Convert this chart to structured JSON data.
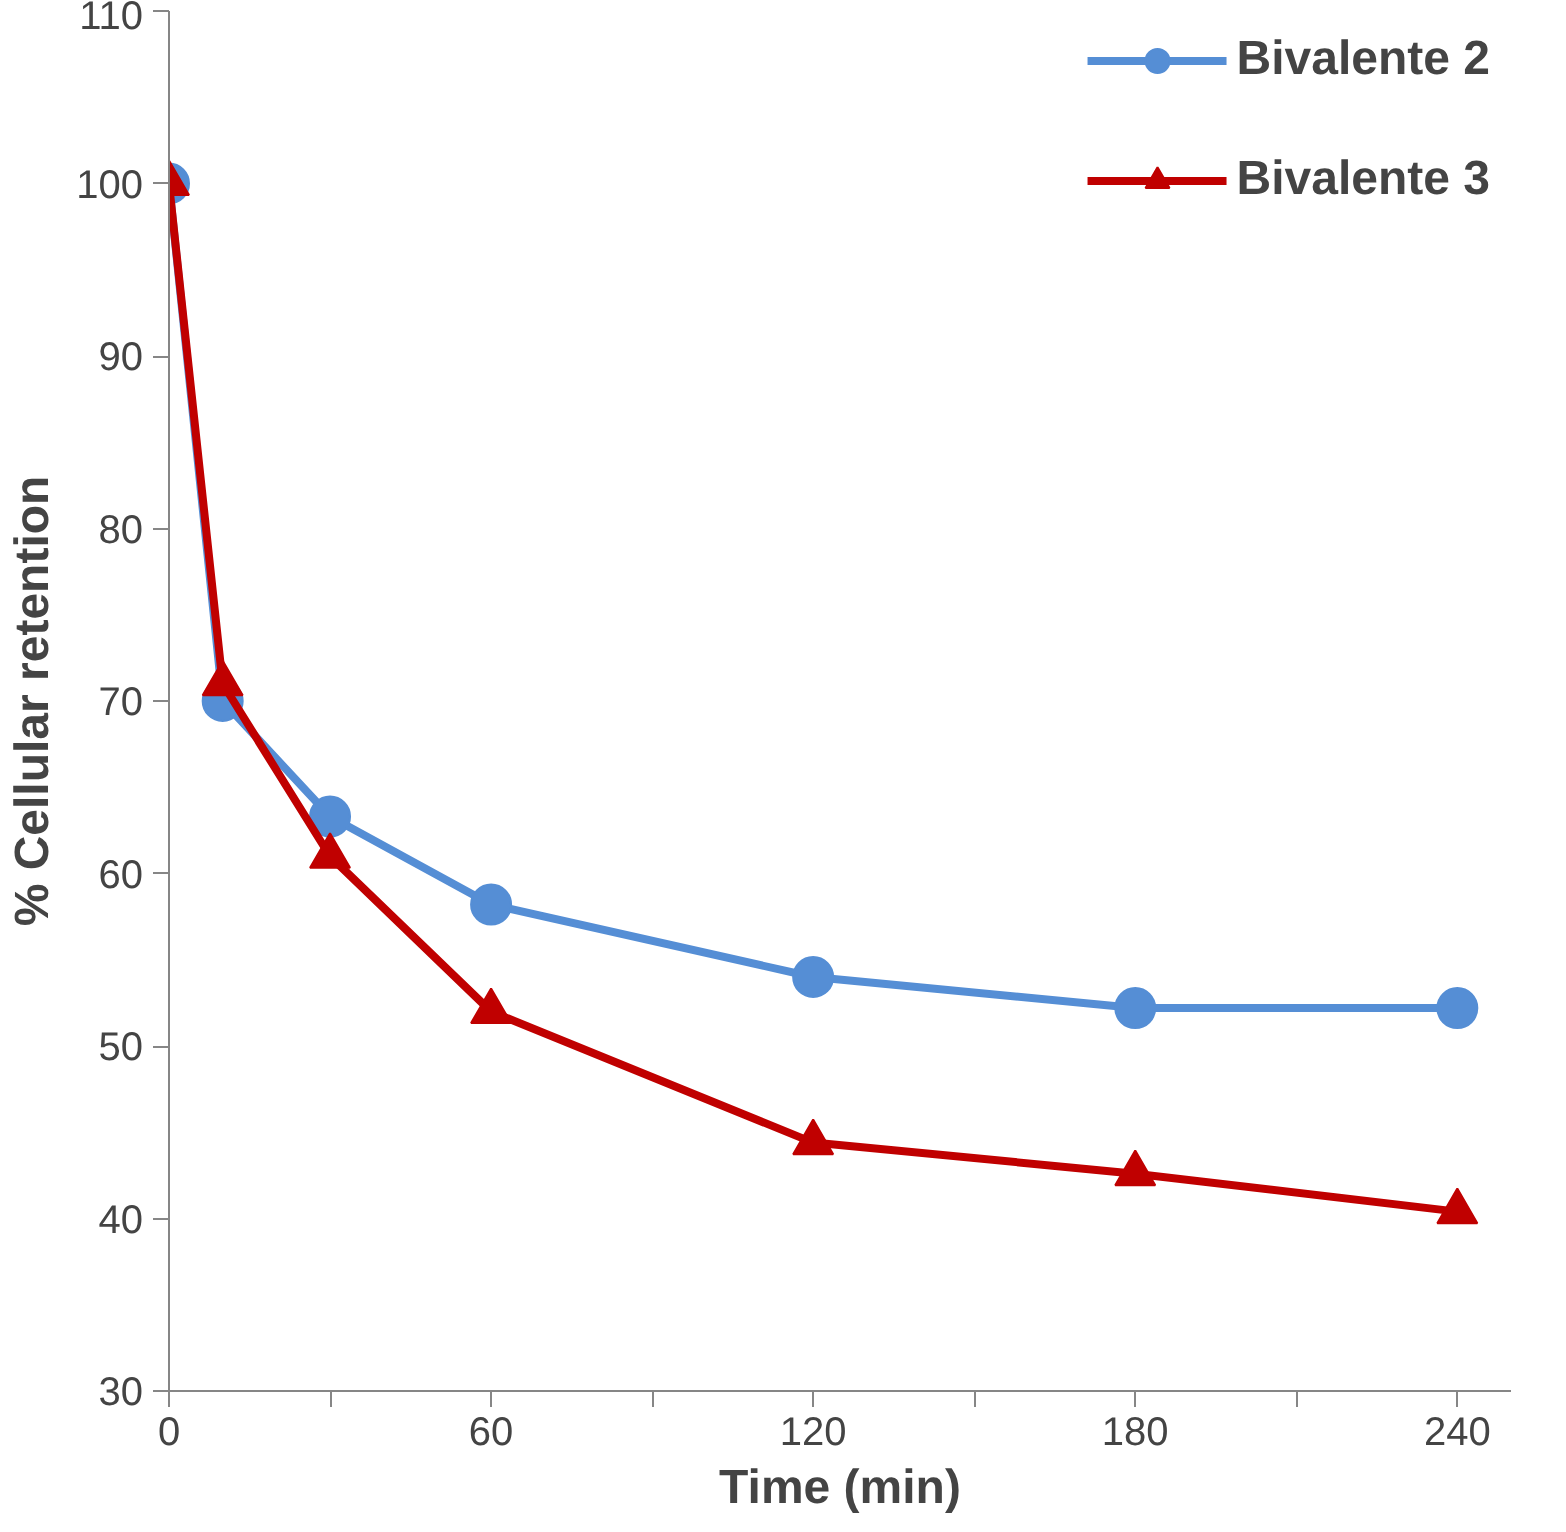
{
  "chart_data": {
    "type": "line",
    "xlabel": "Time (min)",
    "ylabel": "% Cellular retention",
    "x": [
      0,
      10,
      30,
      60,
      120,
      180,
      240
    ],
    "series": [
      {
        "name": "Bivalente 2",
        "color": "#558ed5",
        "marker": "circle",
        "values": [
          100,
          70,
          63.3,
          58.2,
          54.0,
          52.2,
          52.2
        ]
      },
      {
        "name": "Bivalente 3",
        "color": "#c00000",
        "marker": "triangle",
        "values": [
          100,
          71,
          61,
          52,
          44.4,
          42.6,
          40.4
        ]
      }
    ],
    "xlim": [
      0,
      250
    ],
    "ylim": [
      30,
      110
    ],
    "xticks": [
      0,
      {
        "value": 30,
        "label": null
      },
      60,
      {
        "value": 90,
        "label": null
      },
      120,
      {
        "value": 150,
        "label": null
      },
      180,
      {
        "value": 210,
        "label": null
      },
      240
    ],
    "yticks": [
      30,
      40,
      50,
      60,
      70,
      80,
      90,
      100,
      110
    ],
    "grid": false,
    "legend": "top right"
  }
}
